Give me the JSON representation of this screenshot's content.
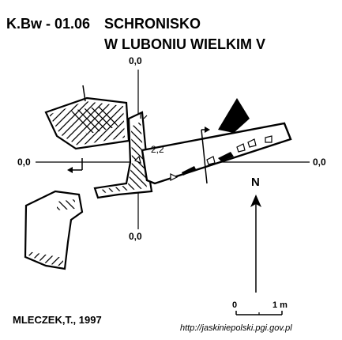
{
  "cave": {
    "code": "K.Bw - 01.06",
    "name_line1": "SCHRONISKO",
    "name_line2": "W LUBONIU WIELKIM V"
  },
  "datums": {
    "top": "0,0",
    "left": "0,0",
    "right": "0,0",
    "bottom": "0,0"
  },
  "height_mark": "2,2",
  "north_label": "N",
  "scale": {
    "start": "0",
    "end": "1 m"
  },
  "author": "MLECZEK,T., 1997",
  "source": "http://jaskiniepolski.pgi.gov.pl",
  "colors": {
    "ink": "#000000",
    "paper": "#ffffff"
  }
}
